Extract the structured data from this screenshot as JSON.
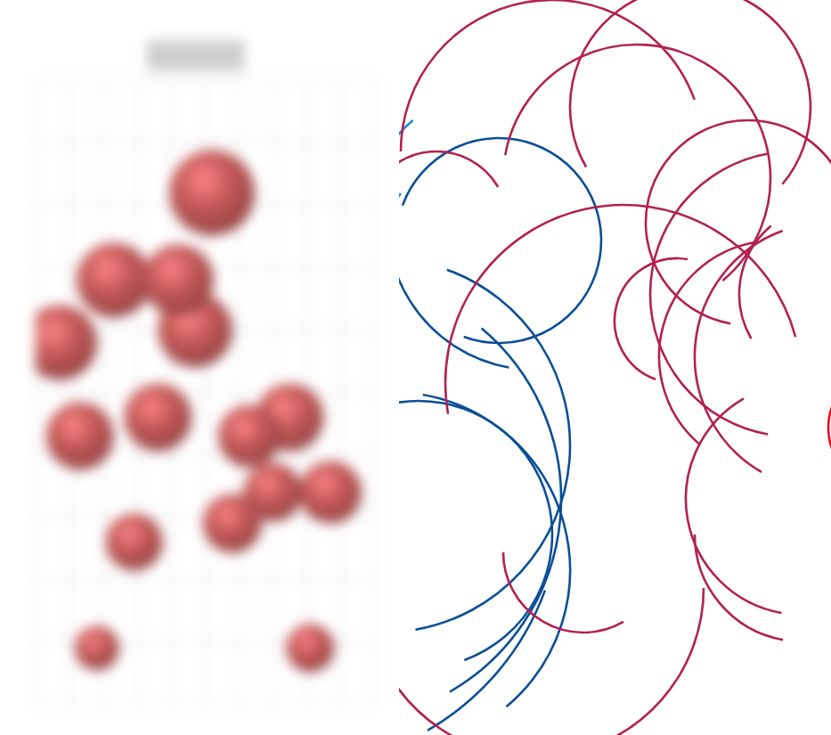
{
  "chart_data": {
    "type": "bubble",
    "x": [
      5.2,
      2.3,
      4.2,
      4.7,
      0.7,
      1.3,
      3.6,
      6.3,
      7.5,
      7.0,
      8.7,
      5.8,
      2.9,
      8.1,
      1.8
    ],
    "y": [
      8.2,
      6.8,
      6.8,
      6.0,
      5.8,
      4.3,
      4.6,
      4.3,
      4.6,
      3.4,
      3.4,
      2.9,
      2.6,
      0.9,
      0.9
    ],
    "sizes": [
      48,
      42,
      40,
      42,
      42,
      38,
      38,
      35,
      38,
      33,
      35,
      33,
      32,
      27,
      25
    ],
    "color": "#c85a5a",
    "xlim": [
      0,
      10
    ],
    "ylim": [
      0,
      10
    ],
    "xticks": [
      0,
      1,
      2,
      3,
      4,
      5,
      6,
      7,
      8,
      9,
      10
    ],
    "yticks": [
      0,
      1,
      2,
      3,
      4,
      5,
      6,
      7,
      8,
      9,
      10
    ],
    "grid": true,
    "tick_labels": false
  }
}
